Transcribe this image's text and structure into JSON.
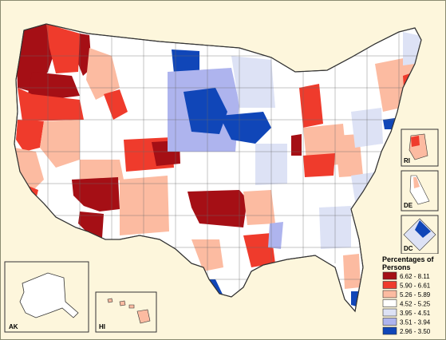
{
  "map": {
    "insets": {
      "alaska": "AK",
      "hawaii": "HI",
      "rhode_island": "RI",
      "delaware": "DE",
      "district_of_columbia": "DC"
    }
  },
  "legend": {
    "title_line1": "Percentages of",
    "title_line2": "Persons",
    "classes": [
      {
        "label": "6.62 - 8.11",
        "color": "#a50f15"
      },
      {
        "label": "5.90 - 6.61",
        "color": "#ef3b2c"
      },
      {
        "label": "5.26 - 5.89",
        "color": "#fcbba1"
      },
      {
        "label": "4.52 - 5.25",
        "color": "#ffffff"
      },
      {
        "label": "3.95 - 4.51",
        "color": "#dde2f5"
      },
      {
        "label": "3.51 - 3.94",
        "color": "#aeb4ee"
      },
      {
        "label": "2.96 - 3.50",
        "color": "#1046b8"
      }
    ]
  },
  "colors": {
    "background": "#fdf6dc",
    "border": "#555555",
    "class1": "#a50f15",
    "class2": "#ef3b2c",
    "class3": "#fcbba1",
    "class4": "#ffffff",
    "class5": "#dde2f5",
    "class6": "#aeb4ee",
    "class7": "#1046b8"
  }
}
